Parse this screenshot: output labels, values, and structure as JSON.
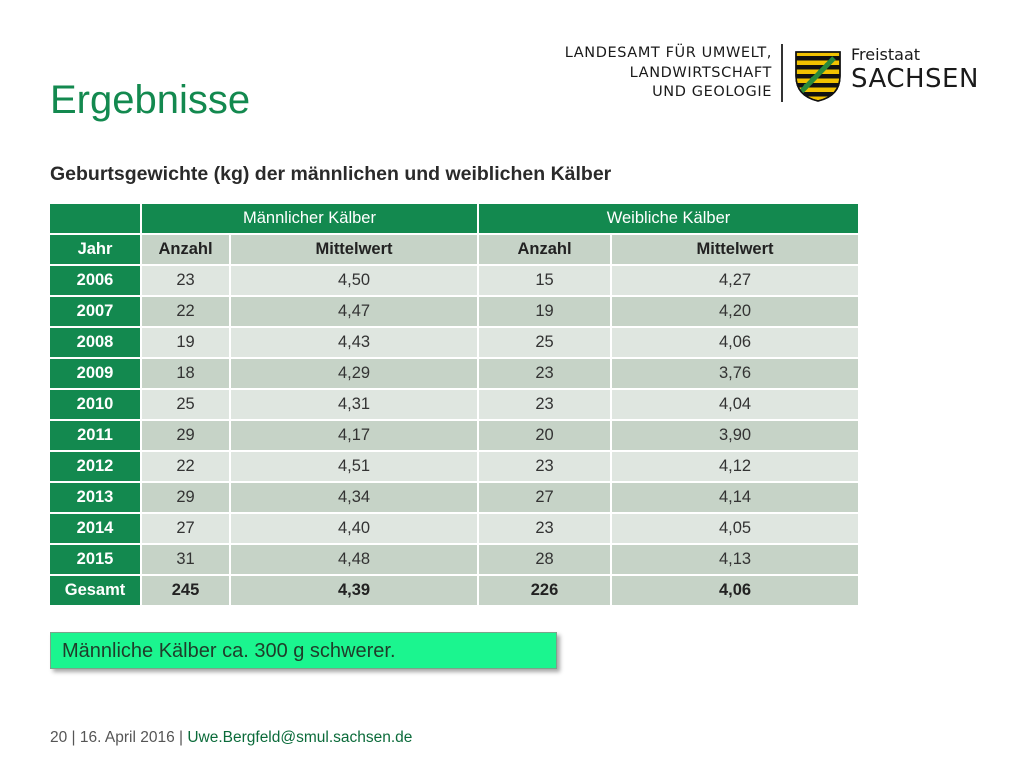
{
  "title": "Ergebnisse",
  "header": {
    "org_lines": [
      "LANDESAMT FÜR UMWELT,",
      "LANDWIRTSCHAFT",
      "UND GEOLOGIE"
    ],
    "state_small": "Freistaat",
    "state_big": "SACHSEN",
    "colors": {
      "shield_yellow": "#f2c200",
      "shield_black": "#111111",
      "crown_green": "#2a8a3a"
    }
  },
  "table_caption": "Geburtsgewichte (kg) der männlichen und weiblichen Kälber",
  "table": {
    "group_headers": [
      "",
      "Männlicher Kälber",
      "Weibliche Kälber"
    ],
    "column_headers": [
      "Jahr",
      "Anzahl",
      "Mittelwert",
      "Anzahl",
      "Mittelwert"
    ],
    "rows": [
      [
        "2006",
        "23",
        "4,50",
        "15",
        "4,27"
      ],
      [
        "2007",
        "22",
        "4,47",
        "19",
        "4,20"
      ],
      [
        "2008",
        "19",
        "4,43",
        "25",
        "4,06"
      ],
      [
        "2009",
        "18",
        "4,29",
        "23",
        "3,76"
      ],
      [
        "2010",
        "25",
        "4,31",
        "23",
        "4,04"
      ],
      [
        "2011",
        "29",
        "4,17",
        "20",
        "3,90"
      ],
      [
        "2012",
        "22",
        "4,51",
        "23",
        "4,12"
      ],
      [
        "2013",
        "29",
        "4,34",
        "27",
        "4,14"
      ],
      [
        "2014",
        "27",
        "4,40",
        "23",
        "4,05"
      ],
      [
        "2015",
        "31",
        "4,48",
        "28",
        "4,13"
      ]
    ],
    "total": [
      "Gesamt",
      "245",
      "4,39",
      "226",
      "4,06"
    ]
  },
  "conclusion": "Männliche Kälber ca. 300 g schwerer.",
  "footer": {
    "page_number": "20",
    "separator": " | ",
    "date": "16. April 2016",
    "email": "Uwe.Bergfeld@smul.sachsen.de"
  },
  "colors": {
    "accent_green": "#13894f",
    "cell_light": "#dfe6e0",
    "cell_dark": "#c6d3c7",
    "highlight": "#1bf58f"
  }
}
